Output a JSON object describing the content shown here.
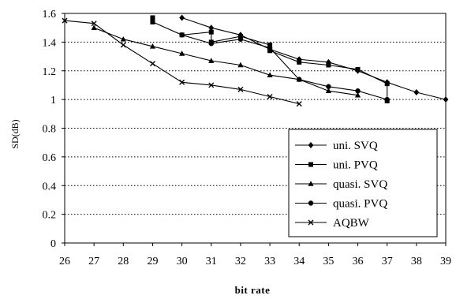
{
  "chart_data": {
    "type": "line",
    "title": "",
    "xlabel": "bit rate",
    "ylabel": "SD(dB)",
    "xlim": [
      26,
      39
    ],
    "ylim": [
      0,
      1.6
    ],
    "x_ticks": [
      "26",
      "27",
      "28",
      "29",
      "30",
      "31",
      "32",
      "33",
      "34",
      "35",
      "36",
      "37",
      "38",
      "39"
    ],
    "y_ticks": [
      "0",
      "0.2",
      "0.4",
      "0.6",
      "0.8",
      "1",
      "1.2",
      "1.4",
      "1.6"
    ],
    "grid": "horizontal dotted",
    "legend_position": "bottom-right",
    "series": [
      {
        "name": "uni. SVQ",
        "marker": "diamond",
        "x": [
          30,
          31,
          32,
          33,
          34,
          35,
          36,
          37,
          38,
          39
        ],
        "y": [
          1.57,
          1.5,
          1.45,
          1.35,
          1.28,
          1.26,
          1.2,
          1.12,
          1.05,
          1.0
        ]
      },
      {
        "name": "uni. PVQ",
        "marker": "square",
        "x": [
          29,
          29,
          30,
          31,
          31,
          32,
          33,
          33,
          34,
          35,
          36,
          37,
          37
        ],
        "y": [
          1.57,
          1.54,
          1.45,
          1.47,
          1.4,
          1.44,
          1.38,
          1.34,
          1.26,
          1.24,
          1.21,
          1.11,
          0.99
        ]
      },
      {
        "name": "quasi. SVQ",
        "marker": "triangle",
        "x": [
          27,
          28,
          29,
          30,
          31,
          32,
          33,
          34,
          35,
          36
        ],
        "y": [
          1.5,
          1.42,
          1.37,
          1.32,
          1.27,
          1.24,
          1.17,
          1.14,
          1.06,
          1.03
        ]
      },
      {
        "name": "quasi. PVQ",
        "marker": "circle",
        "x": [
          30,
          31,
          32,
          33,
          34,
          35,
          36,
          37
        ],
        "y": [
          1.45,
          1.39,
          1.42,
          1.36,
          1.14,
          1.09,
          1.06,
          1.0
        ]
      },
      {
        "name": "AQBW",
        "marker": "cross",
        "x": [
          26,
          27,
          28,
          29,
          30,
          31,
          32,
          33,
          34
        ],
        "y": [
          1.55,
          1.53,
          1.38,
          1.25,
          1.12,
          1.1,
          1.07,
          1.02,
          0.97
        ]
      }
    ]
  }
}
